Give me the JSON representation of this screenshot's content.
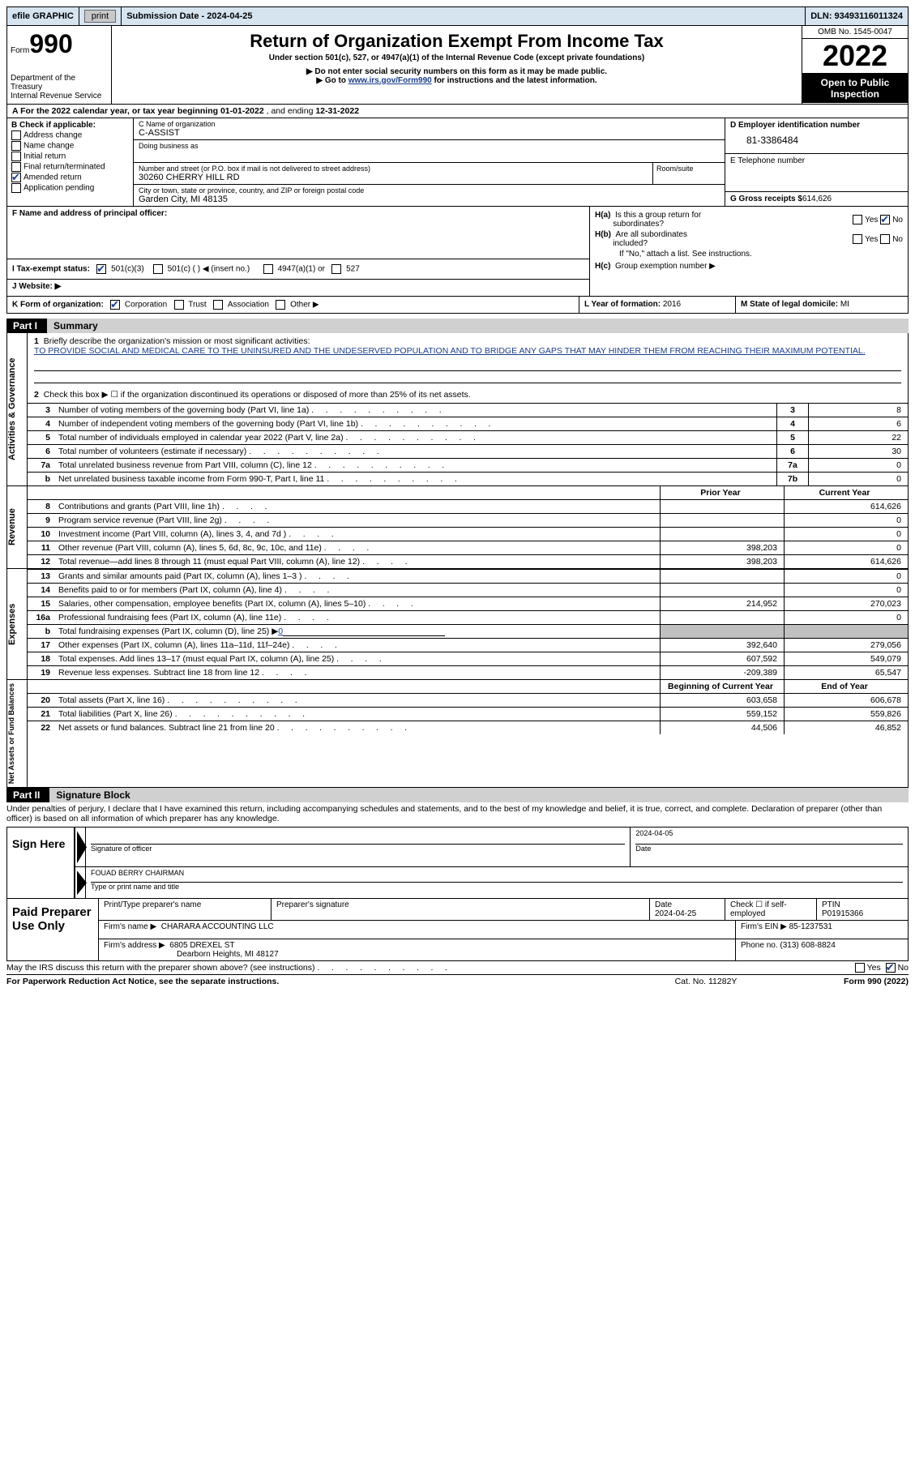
{
  "top_bar": {
    "efile_label": "efile GRAPHIC",
    "print_btn": "print",
    "submission_label": "Submission Date - 2024-04-25",
    "dln_label": "DLN: 93493116011324"
  },
  "header": {
    "form_word": "Form",
    "form_number": "990",
    "dept": "Department of the Treasury",
    "irs": "Internal Revenue Service",
    "title": "Return of Organization Exempt From Income Tax",
    "subtitle": "Under section 501(c), 527, or 4947(a)(1) of the Internal Revenue Code (except private foundations)",
    "note1": "▶ Do not enter social security numbers on this form as it may be made public.",
    "note2_pre": "▶ Go to ",
    "note2_link": "www.irs.gov/Form990",
    "note2_post": " for instructions and the latest information.",
    "omb": "OMB No. 1545-0047",
    "year": "2022",
    "open": "Open to Public Inspection"
  },
  "line_a": {
    "prefix": "A For the 2022 calendar year, or tax year beginning ",
    "begin": "01-01-2022",
    "mid": "  , and ending ",
    "end": "12-31-2022"
  },
  "section_b": {
    "header": "B Check if applicable:",
    "items": [
      "Address change",
      "Name change",
      "Initial return",
      "Final return/terminated",
      "Amended return",
      "Application pending"
    ],
    "checked_idx": 4
  },
  "section_c": {
    "name_label": "C Name of organization",
    "name": "C-ASSIST",
    "dba_label": "Doing business as",
    "dba": "",
    "street_label": "Number and street (or P.O. box if mail is not delivered to street address)",
    "room_label": "Room/suite",
    "street": "30260 CHERRY HILL RD",
    "city_label": "City or town, state or province, country, and ZIP or foreign postal code",
    "city": "Garden City, MI  48135"
  },
  "section_d": {
    "label": "D Employer identification number",
    "ein": "81-3386484",
    "e_label": "E Telephone number",
    "phone": "",
    "g_label": "G Gross receipts $",
    "g_val": "614,626"
  },
  "section_f": {
    "label": "F Name and address of principal officer:",
    "val": ""
  },
  "section_h": {
    "ha_label": "H(a)  Is this a group return for subordinates?",
    "hb_label": "H(b)  Are all subordinates included?",
    "hb_note": "If \"No,\" attach a list. See instructions.",
    "hc_label": "H(c)  Group exemption number ▶",
    "yes": "Yes",
    "no": "No"
  },
  "tax_status": {
    "i_label": "I   Tax-exempt status:",
    "opt1": "501(c)(3)",
    "opt2": "501(c) (   ) ◀ (insert no.)",
    "opt3": "4947(a)(1) or",
    "opt4": "527"
  },
  "website": {
    "label": "J   Website: ▶",
    "val": ""
  },
  "line_k": {
    "label": "K Form of organization:",
    "opts": [
      "Corporation",
      "Trust",
      "Association",
      "Other ▶"
    ],
    "l_label": "L Year of formation:",
    "l_val": "2016",
    "m_label": "M State of legal domicile:",
    "m_val": "MI"
  },
  "part1": {
    "num": "Part I",
    "title": "Summary"
  },
  "mission": {
    "num": "1",
    "label": "Briefly describe the organization's mission or most significant activities:",
    "text": "TO PROVIDE SOCIAL AND MEDICAL CARE TO THE UNINSURED AND THE UNDESERVED POPULATION AND TO BRIDGE ANY GAPS THAT MAY HINDER THEM FROM REACHING THEIR MAXIMUM POTENTIAL."
  },
  "line2": {
    "num": "2",
    "text": "Check this box ▶ ☐ if the organization discontinued its operations or disposed of more than 25% of its net assets."
  },
  "gov_rows": [
    {
      "num": "3",
      "desc": "Number of voting members of the governing body (Part VI, line 1a)",
      "box": "3",
      "val": "8"
    },
    {
      "num": "4",
      "desc": "Number of independent voting members of the governing body (Part VI, line 1b)",
      "box": "4",
      "val": "6"
    },
    {
      "num": "5",
      "desc": "Total number of individuals employed in calendar year 2022 (Part V, line 2a)",
      "box": "5",
      "val": "22"
    },
    {
      "num": "6",
      "desc": "Total number of volunteers (estimate if necessary)",
      "box": "6",
      "val": "30"
    },
    {
      "num": "7a",
      "desc": "Total unrelated business revenue from Part VIII, column (C), line 12",
      "box": "7a",
      "val": "0"
    },
    {
      "num": "b",
      "desc": "Net unrelated business taxable income from Form 990-T, Part I, line 11",
      "box": "7b",
      "val": "0"
    }
  ],
  "prior_header": "Prior Year",
  "current_header": "Current Year",
  "revenue_rows": [
    {
      "num": "8",
      "desc": "Contributions and grants (Part VIII, line 1h)",
      "prior": "",
      "current": "614,626"
    },
    {
      "num": "9",
      "desc": "Program service revenue (Part VIII, line 2g)",
      "prior": "",
      "current": "0"
    },
    {
      "num": "10",
      "desc": "Investment income (Part VIII, column (A), lines 3, 4, and 7d )",
      "prior": "",
      "current": "0"
    },
    {
      "num": "11",
      "desc": "Other revenue (Part VIII, column (A), lines 5, 6d, 8c, 9c, 10c, and 11e)",
      "prior": "398,203",
      "current": "0"
    },
    {
      "num": "12",
      "desc": "Total revenue—add lines 8 through 11 (must equal Part VIII, column (A), line 12)",
      "prior": "398,203",
      "current": "614,626"
    }
  ],
  "expense_rows": [
    {
      "num": "13",
      "desc": "Grants and similar amounts paid (Part IX, column (A), lines 1–3 )",
      "prior": "",
      "current": "0"
    },
    {
      "num": "14",
      "desc": "Benefits paid to or for members (Part IX, column (A), line 4)",
      "prior": "",
      "current": "0"
    },
    {
      "num": "15",
      "desc": "Salaries, other compensation, employee benefits (Part IX, column (A), lines 5–10)",
      "prior": "214,952",
      "current": "270,023"
    },
    {
      "num": "16a",
      "desc": "Professional fundraising fees (Part IX, column (A), line 11e)",
      "prior": "",
      "current": "0"
    },
    {
      "num": "b",
      "desc": "Total fundraising expenses (Part IX, column (D), line 25) ▶",
      "val_inline": "0",
      "shaded": true
    },
    {
      "num": "17",
      "desc": "Other expenses (Part IX, column (A), lines 11a–11d, 11f–24e)",
      "prior": "392,640",
      "current": "279,056"
    },
    {
      "num": "18",
      "desc": "Total expenses. Add lines 13–17 (must equal Part IX, column (A), line 25)",
      "prior": "607,592",
      "current": "549,079"
    },
    {
      "num": "19",
      "desc": "Revenue less expenses. Subtract line 18 from line 12",
      "prior": "-209,389",
      "current": "65,547"
    }
  ],
  "begin_header": "Beginning of Current Year",
  "end_header": "End of Year",
  "assets_rows": [
    {
      "num": "20",
      "desc": "Total assets (Part X, line 16)",
      "prior": "603,658",
      "current": "606,678"
    },
    {
      "num": "21",
      "desc": "Total liabilities (Part X, line 26)",
      "prior": "559,152",
      "current": "559,826"
    },
    {
      "num": "22",
      "desc": "Net assets or fund balances. Subtract line 21 from line 20",
      "prior": "44,506",
      "current": "46,852"
    }
  ],
  "side_labels": {
    "gov": "Activities & Governance",
    "rev": "Revenue",
    "exp": "Expenses",
    "net": "Net Assets or Fund Balances"
  },
  "part2": {
    "num": "Part II",
    "title": "Signature Block"
  },
  "sig_disclaimer": "Under penalties of perjury, I declare that I have examined this return, including accompanying schedules and statements, and to the best of my knowledge and belief, it is true, correct, and complete. Declaration of preparer (other than officer) is based on all information of which preparer has any knowledge.",
  "sign_here": "Sign Here",
  "sig": {
    "officer_sig_label": "Signature of officer",
    "date_val": "2024-04-05",
    "date_label": "Date",
    "name_val": "FOUAD BERRY CHAIRMAN",
    "name_label": "Type or print name and title"
  },
  "paid_prep": "Paid Preparer Use Only",
  "prep": {
    "name_label": "Print/Type preparer's name",
    "sig_label": "Preparer's signature",
    "date_label": "Date",
    "date_val": "2024-04-25",
    "check_label": "Check ☐ if self-employed",
    "ptin_label": "PTIN",
    "ptin_val": "P01915366",
    "firm_name_label": "Firm's name    ▶",
    "firm_name": "CHARARA ACCOUNTING LLC",
    "firm_ein_label": "Firm's EIN ▶",
    "firm_ein": "85-1237531",
    "firm_addr_label": "Firm's address ▶",
    "firm_addr": "6805 DREXEL ST",
    "firm_city": "Dearborn Heights, MI  48127",
    "phone_label": "Phone no.",
    "phone": "(313) 608-8824"
  },
  "footer": {
    "discuss": "May the IRS discuss this return with the preparer shown above? (see instructions)",
    "yes": "Yes",
    "no": "No",
    "paperwork": "For Paperwork Reduction Act Notice, see the separate instructions.",
    "cat": "Cat. No. 11282Y",
    "form": "Form 990 (2022)"
  }
}
